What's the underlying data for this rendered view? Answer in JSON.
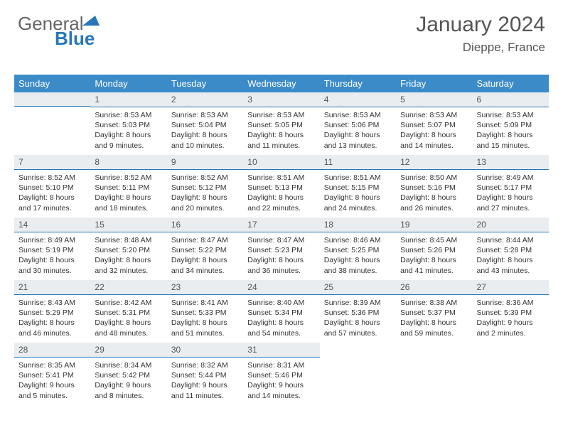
{
  "brand": {
    "part1": "General",
    "part2": "Blue"
  },
  "header": {
    "title": "January 2024",
    "location": "Dieppe, France"
  },
  "colors": {
    "accent": "#3b8bc9",
    "border": "#2977b8",
    "daybg": "#e9edef",
    "text": "#333",
    "muted": "#555"
  },
  "weekdays": [
    "Sunday",
    "Monday",
    "Tuesday",
    "Wednesday",
    "Thursday",
    "Friday",
    "Saturday"
  ],
  "weeks": [
    [
      null,
      {
        "n": "1",
        "sr": "8:53 AM",
        "ss": "5:03 PM",
        "dl": "8 hours and 9 minutes."
      },
      {
        "n": "2",
        "sr": "8:53 AM",
        "ss": "5:04 PM",
        "dl": "8 hours and 10 minutes."
      },
      {
        "n": "3",
        "sr": "8:53 AM",
        "ss": "5:05 PM",
        "dl": "8 hours and 11 minutes."
      },
      {
        "n": "4",
        "sr": "8:53 AM",
        "ss": "5:06 PM",
        "dl": "8 hours and 13 minutes."
      },
      {
        "n": "5",
        "sr": "8:53 AM",
        "ss": "5:07 PM",
        "dl": "8 hours and 14 minutes."
      },
      {
        "n": "6",
        "sr": "8:53 AM",
        "ss": "5:09 PM",
        "dl": "8 hours and 15 minutes."
      }
    ],
    [
      {
        "n": "7",
        "sr": "8:52 AM",
        "ss": "5:10 PM",
        "dl": "8 hours and 17 minutes."
      },
      {
        "n": "8",
        "sr": "8:52 AM",
        "ss": "5:11 PM",
        "dl": "8 hours and 18 minutes."
      },
      {
        "n": "9",
        "sr": "8:52 AM",
        "ss": "5:12 PM",
        "dl": "8 hours and 20 minutes."
      },
      {
        "n": "10",
        "sr": "8:51 AM",
        "ss": "5:13 PM",
        "dl": "8 hours and 22 minutes."
      },
      {
        "n": "11",
        "sr": "8:51 AM",
        "ss": "5:15 PM",
        "dl": "8 hours and 24 minutes."
      },
      {
        "n": "12",
        "sr": "8:50 AM",
        "ss": "5:16 PM",
        "dl": "8 hours and 26 minutes."
      },
      {
        "n": "13",
        "sr": "8:49 AM",
        "ss": "5:17 PM",
        "dl": "8 hours and 27 minutes."
      }
    ],
    [
      {
        "n": "14",
        "sr": "8:49 AM",
        "ss": "5:19 PM",
        "dl": "8 hours and 30 minutes."
      },
      {
        "n": "15",
        "sr": "8:48 AM",
        "ss": "5:20 PM",
        "dl": "8 hours and 32 minutes."
      },
      {
        "n": "16",
        "sr": "8:47 AM",
        "ss": "5:22 PM",
        "dl": "8 hours and 34 minutes."
      },
      {
        "n": "17",
        "sr": "8:47 AM",
        "ss": "5:23 PM",
        "dl": "8 hours and 36 minutes."
      },
      {
        "n": "18",
        "sr": "8:46 AM",
        "ss": "5:25 PM",
        "dl": "8 hours and 38 minutes."
      },
      {
        "n": "19",
        "sr": "8:45 AM",
        "ss": "5:26 PM",
        "dl": "8 hours and 41 minutes."
      },
      {
        "n": "20",
        "sr": "8:44 AM",
        "ss": "5:28 PM",
        "dl": "8 hours and 43 minutes."
      }
    ],
    [
      {
        "n": "21",
        "sr": "8:43 AM",
        "ss": "5:29 PM",
        "dl": "8 hours and 46 minutes."
      },
      {
        "n": "22",
        "sr": "8:42 AM",
        "ss": "5:31 PM",
        "dl": "8 hours and 48 minutes."
      },
      {
        "n": "23",
        "sr": "8:41 AM",
        "ss": "5:33 PM",
        "dl": "8 hours and 51 minutes."
      },
      {
        "n": "24",
        "sr": "8:40 AM",
        "ss": "5:34 PM",
        "dl": "8 hours and 54 minutes."
      },
      {
        "n": "25",
        "sr": "8:39 AM",
        "ss": "5:36 PM",
        "dl": "8 hours and 57 minutes."
      },
      {
        "n": "26",
        "sr": "8:38 AM",
        "ss": "5:37 PM",
        "dl": "8 hours and 59 minutes."
      },
      {
        "n": "27",
        "sr": "8:36 AM",
        "ss": "5:39 PM",
        "dl": "9 hours and 2 minutes."
      }
    ],
    [
      {
        "n": "28",
        "sr": "8:35 AM",
        "ss": "5:41 PM",
        "dl": "9 hours and 5 minutes."
      },
      {
        "n": "29",
        "sr": "8:34 AM",
        "ss": "5:42 PM",
        "dl": "9 hours and 8 minutes."
      },
      {
        "n": "30",
        "sr": "8:32 AM",
        "ss": "5:44 PM",
        "dl": "9 hours and 11 minutes."
      },
      {
        "n": "31",
        "sr": "8:31 AM",
        "ss": "5:46 PM",
        "dl": "9 hours and 14 minutes."
      },
      null,
      null,
      null
    ]
  ],
  "labels": {
    "sunrise": "Sunrise:",
    "sunset": "Sunset:",
    "daylight": "Daylight:"
  }
}
